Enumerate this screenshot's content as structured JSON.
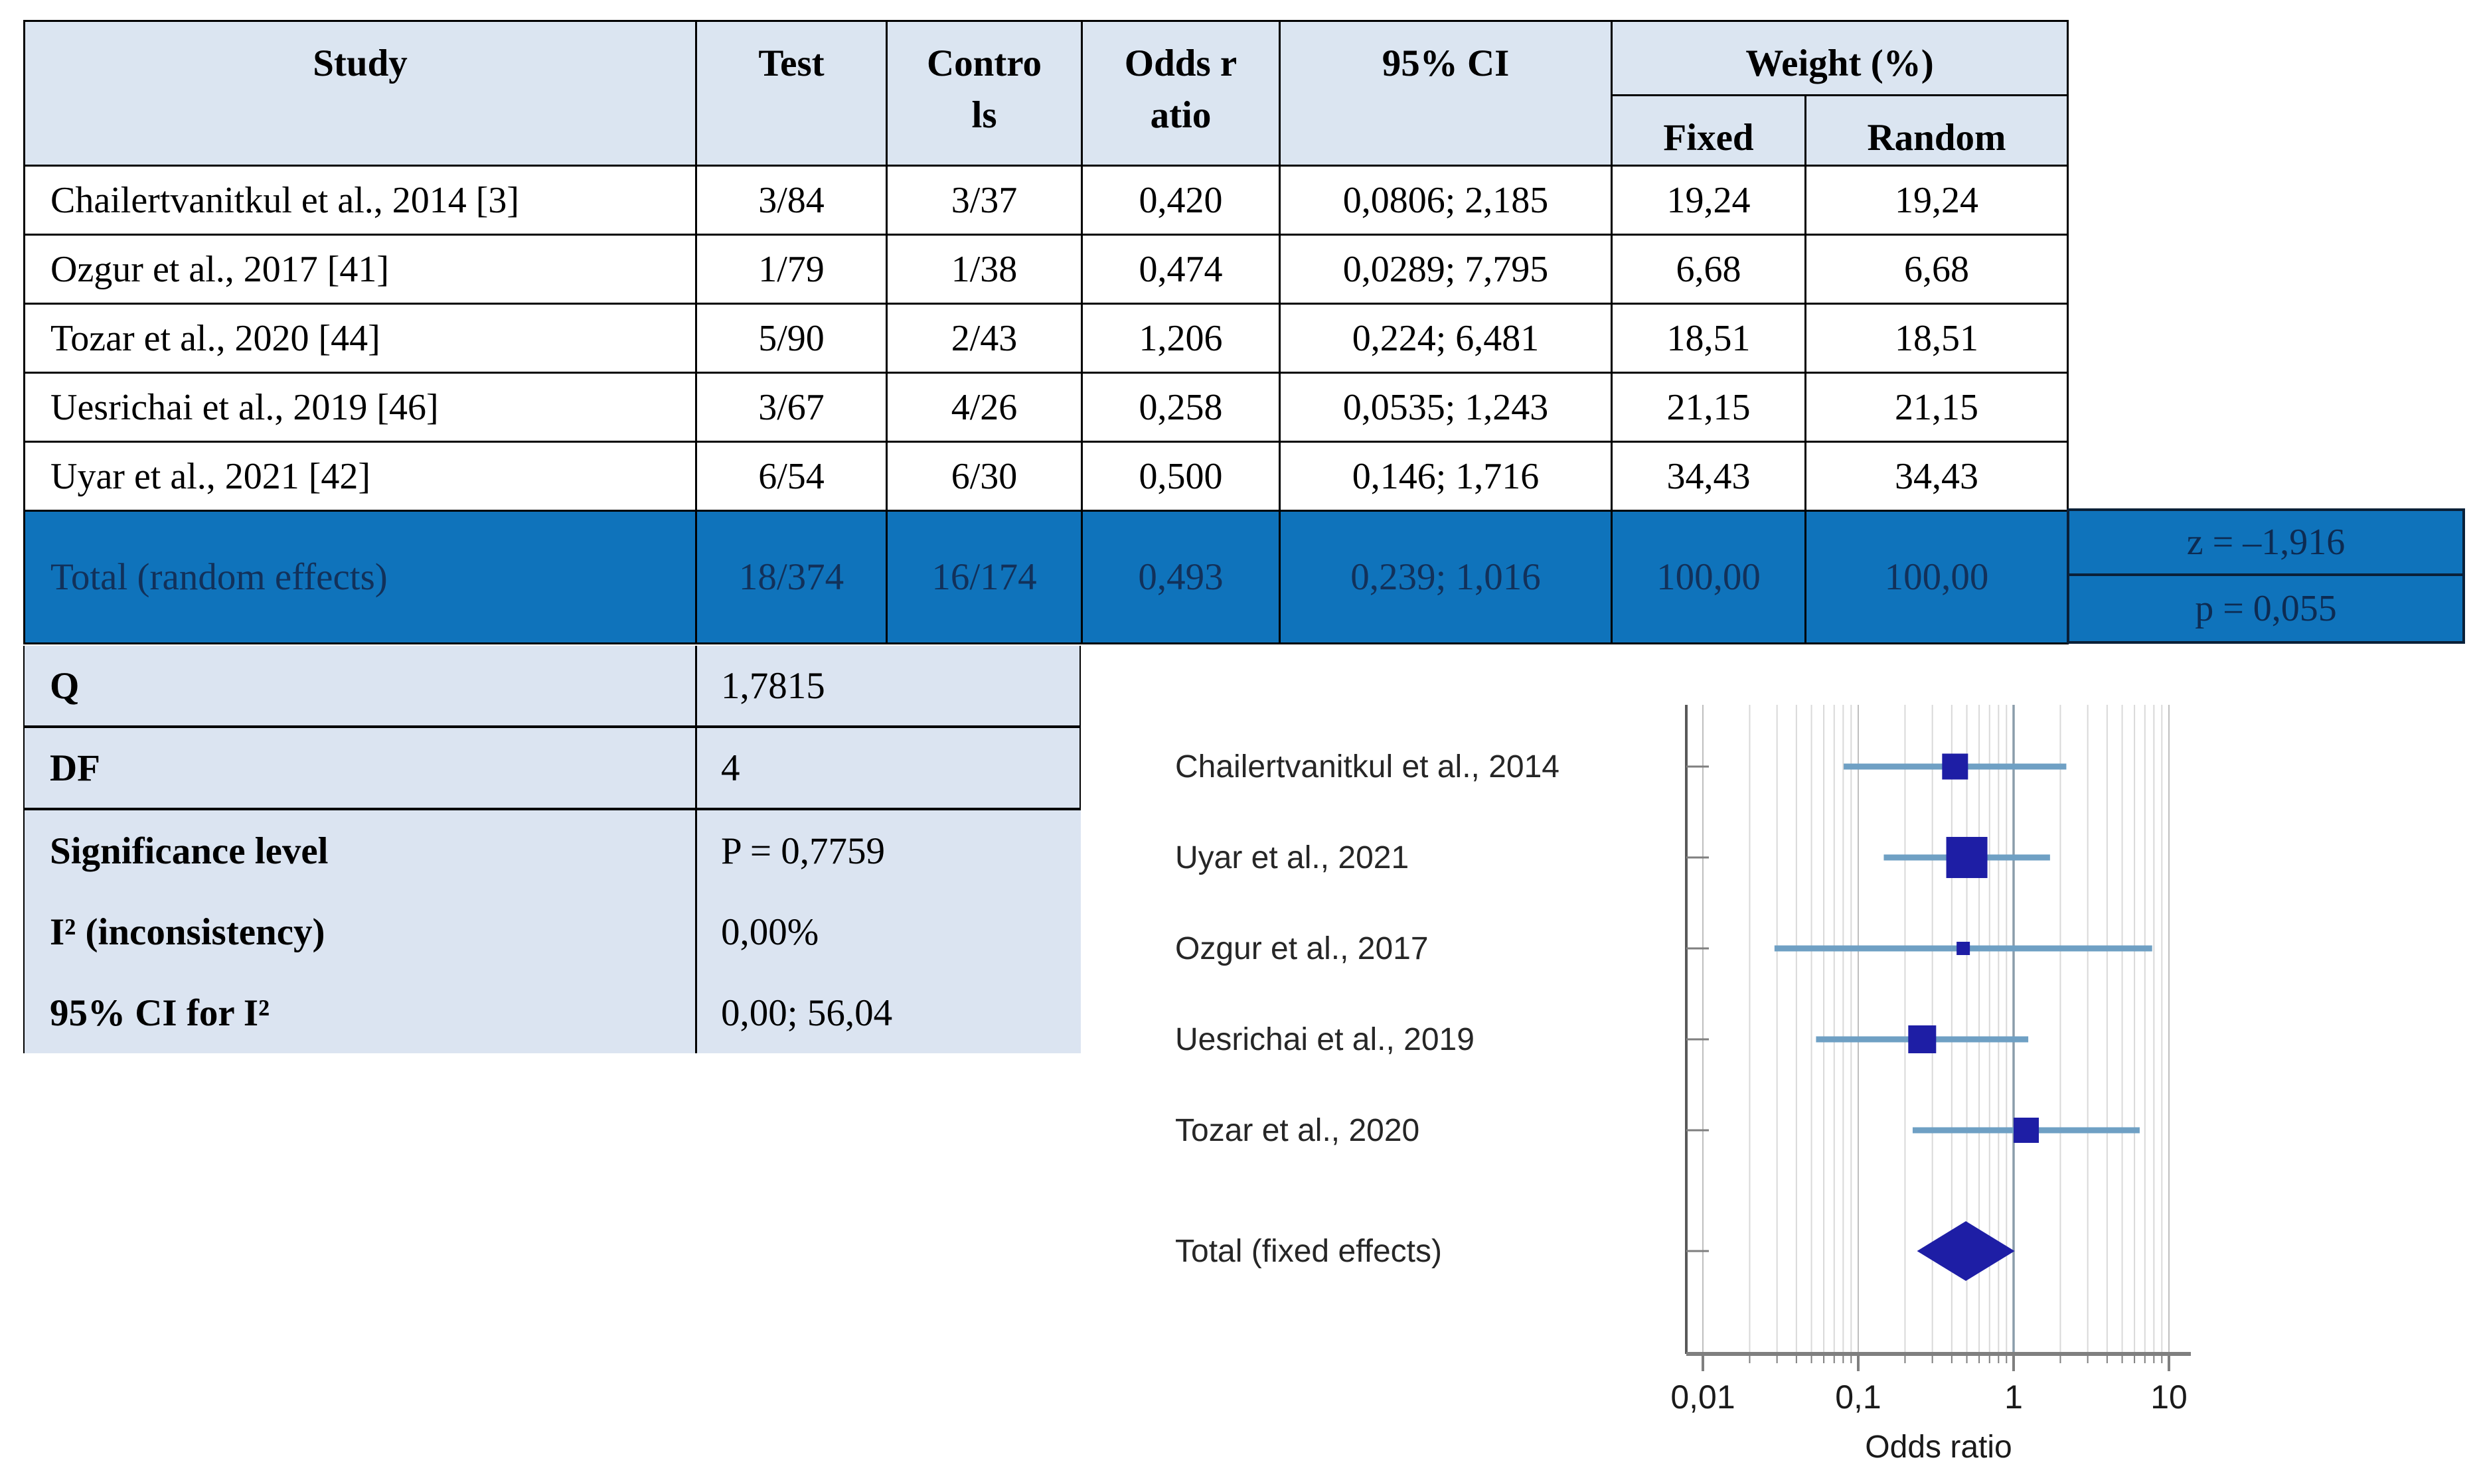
{
  "table": {
    "headers": {
      "study": "Study",
      "test": "Test",
      "controls": "Contro\nls",
      "odds_ratio": "Odds r\natio",
      "ci": "95% CI",
      "weight": "Weight (%)",
      "fixed": "Fixed",
      "random": "Random"
    },
    "rows": [
      {
        "study": "Chailertvanitkul et al., 2014 [3]",
        "test": "3/84",
        "controls": "3/37",
        "or": "0,420",
        "ci": "0,0806; 2,185",
        "fixed": "19,24",
        "random": "19,24"
      },
      {
        "study": "Ozgur et al., 2017 [41]",
        "test": "1/79",
        "controls": "1/38",
        "or": "0,474",
        "ci": "0,0289; 7,795",
        "fixed": "6,68",
        "random": "6,68"
      },
      {
        "study": "Tozar et al., 2020 [44]",
        "test": "5/90",
        "controls": "2/43",
        "or": "1,206",
        "ci": "0,224; 6,481",
        "fixed": "18,51",
        "random": "18,51"
      },
      {
        "study": "Uesrichai et al., 2019 [46]",
        "test": "3/67",
        "controls": "4/26",
        "or": "0,258",
        "ci": "0,0535; 1,243",
        "fixed": "21,15",
        "random": "21,15"
      },
      {
        "study": "Uyar et al., 2021 [42]",
        "test": "6/54",
        "controls": "6/30",
        "or": "0,500",
        "ci": "0,146; 1,716",
        "fixed": "34,43",
        "random": "34,43"
      }
    ],
    "total": {
      "study": "Total (random effects)",
      "test": "18/374",
      "controls": "16/174",
      "or": "0,493",
      "ci": "0,239; 1,016",
      "fixed": "100,00",
      "random": "100,00",
      "z": "z = –1,916",
      "p": "p = 0,055"
    },
    "stats": [
      {
        "label": "Q",
        "value": "1,7815"
      },
      {
        "label": "DF",
        "value": "4"
      },
      {
        "label": "Significance level",
        "value": "P = 0,7759"
      },
      {
        "label": "I² (inconsistency)",
        "value": "0,00%"
      },
      {
        "label": "95% CI for I²",
        "value": "0,00; 56,04"
      }
    ],
    "colors": {
      "header_bg": "#dbe5f1",
      "total_row_bg": "#0f73bb",
      "total_row_text": "#12315a",
      "stats_bg": "#dbe4f1"
    }
  },
  "chart_data": {
    "type": "scatter",
    "subtype": "forest-plot",
    "xlabel": "Odds ratio",
    "x_scale": "log",
    "xlim": [
      0.01,
      10
    ],
    "x_ticks": [
      {
        "label": "0,01",
        "value": 0.01
      },
      {
        "label": "0,1",
        "value": 0.1
      },
      {
        "label": "1",
        "value": 1
      },
      {
        "label": "10",
        "value": 10
      }
    ],
    "reference_line": 1,
    "grid": "log-minor-vertical",
    "legend": "none",
    "studies": [
      {
        "label": "Chailertvanitkul et al., 2014",
        "or": 0.42,
        "ci_low": 0.0806,
        "ci_high": 2.185,
        "weight": 19.24
      },
      {
        "label": "Uyar et al., 2021",
        "or": 0.5,
        "ci_low": 0.146,
        "ci_high": 1.716,
        "weight": 34.43
      },
      {
        "label": "Ozgur et al., 2017",
        "or": 0.474,
        "ci_low": 0.0289,
        "ci_high": 7.795,
        "weight": 6.68
      },
      {
        "label": "Uesrichai et al., 2019",
        "or": 0.258,
        "ci_low": 0.0535,
        "ci_high": 1.243,
        "weight": 21.15
      },
      {
        "label": "Tozar et al., 2020",
        "or": 1.206,
        "ci_low": 0.224,
        "ci_high": 6.481,
        "weight": 18.51
      }
    ],
    "total": {
      "label": "Total (fixed effects)",
      "or": 0.493,
      "ci_low": 0.239,
      "ci_high": 1.016,
      "marker": "diamond"
    },
    "colors": {
      "marker": "#1e1ea5",
      "ci_line": "#6fa0c4",
      "grid_minor": "#d9d9d9",
      "grid_decade": "#bfbfbf",
      "ref_line": "#8b9dab",
      "axis": "#7f7f7f",
      "label_text": "#262626"
    }
  }
}
